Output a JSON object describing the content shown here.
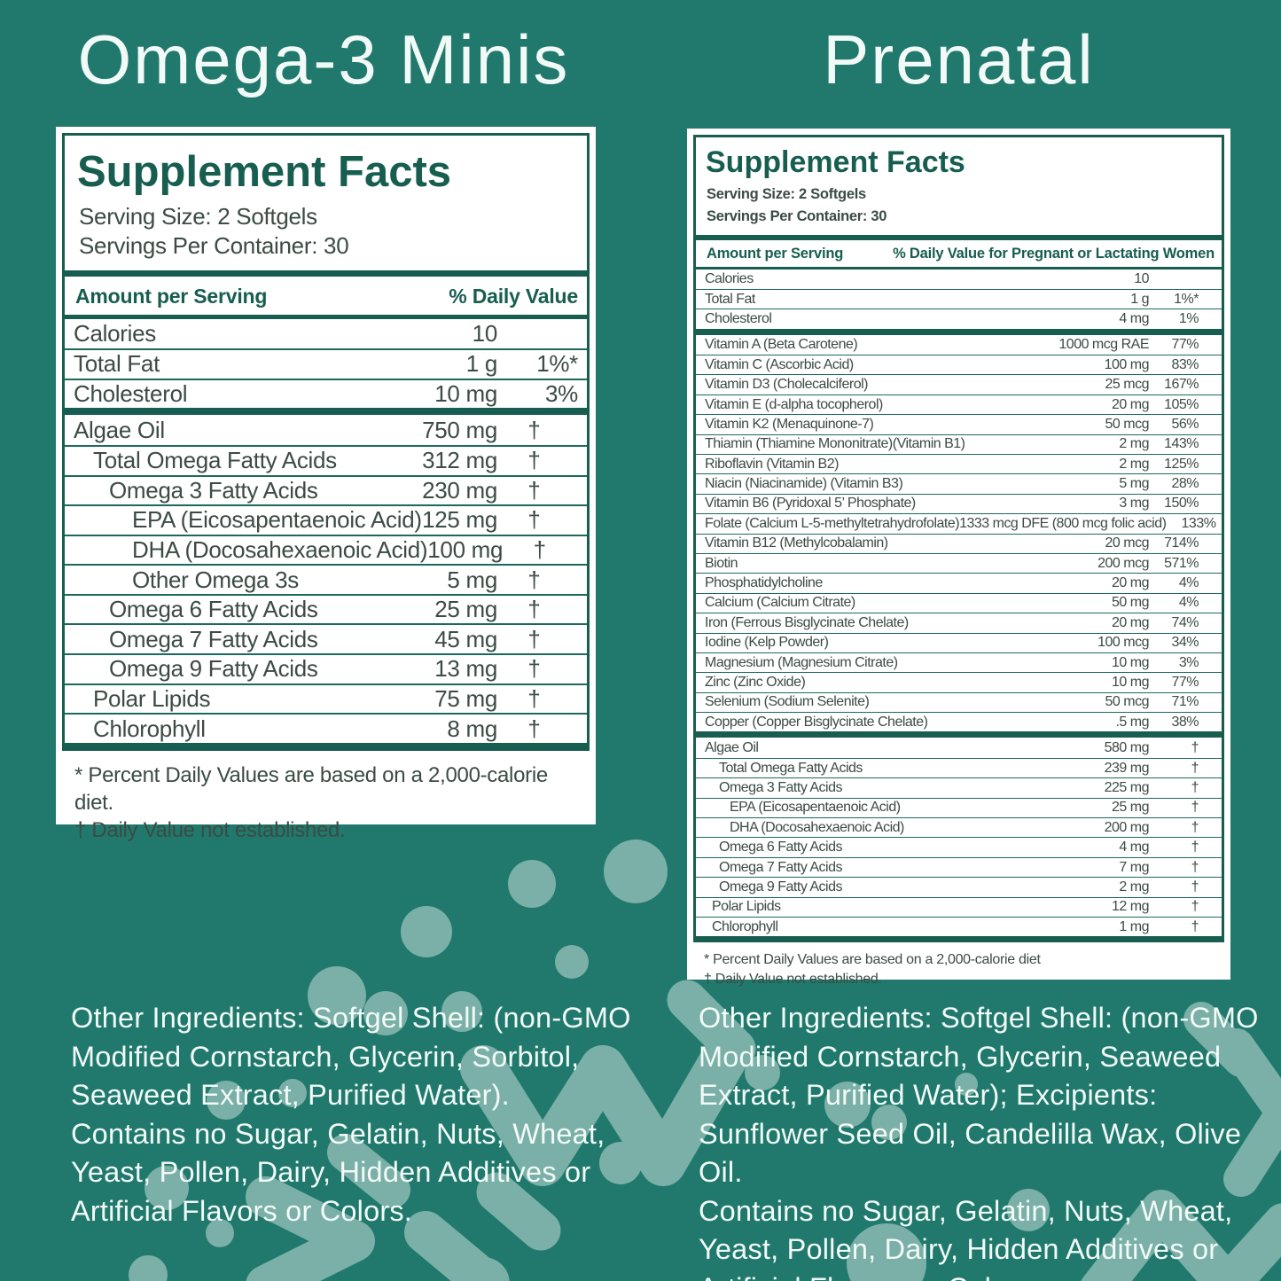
{
  "page": {
    "bg_color": "#20796C",
    "shape_color": "#7AB0A7",
    "accent_dark": "#175E50",
    "line_color": "#1C6A5C",
    "text_color": "#3C4B44",
    "panel_bg": "#FFFFFF",
    "light_text": "#F2FAF7"
  },
  "left": {
    "title": "Omega-3 Minis",
    "facts": {
      "heading": "Supplement Facts",
      "serving_size": "Serving Size: 2 Softgels",
      "servings_per_container": "Servings Per Container: 30",
      "col_amount": "Amount per Serving",
      "col_dv": "% Daily Value",
      "rows": [
        {
          "name": "Calories",
          "amount": "10",
          "dv": "",
          "indent": 0
        },
        {
          "name": "Total Fat",
          "amount": "1 g",
          "dv": "1%*",
          "indent": 0
        },
        {
          "name": "Cholesterol",
          "amount": "10 mg",
          "dv": "3%",
          "indent": 0
        },
        {
          "name": "Algae Oil",
          "amount": "750 mg",
          "dv": "†",
          "indent": 0,
          "thick_before": true
        },
        {
          "name": "Total Omega Fatty Acids",
          "amount": "312 mg",
          "dv": "†",
          "indent": 1
        },
        {
          "name": "Omega 3 Fatty Acids",
          "amount": "230 mg",
          "dv": "†",
          "indent": 2
        },
        {
          "name": "EPA (Eicosapentaenoic Acid)",
          "amount": "125 mg",
          "dv": "†",
          "indent": 3
        },
        {
          "name": "DHA (Docosahexaenoic Acid)",
          "amount": "100 mg",
          "dv": "†",
          "indent": 3
        },
        {
          "name": "Other Omega 3s",
          "amount": "5 mg",
          "dv": "†",
          "indent": 3
        },
        {
          "name": "Omega 6 Fatty Acids",
          "amount": "25 mg",
          "dv": "†",
          "indent": 2
        },
        {
          "name": "Omega 7 Fatty Acids",
          "amount": "45 mg",
          "dv": "†",
          "indent": 2
        },
        {
          "name": "Omega 9 Fatty Acids",
          "amount": "13 mg",
          "dv": "†",
          "indent": 2
        },
        {
          "name": "Polar Lipids",
          "amount": "75 mg",
          "dv": "†",
          "indent": 1
        },
        {
          "name": "Chlorophyll",
          "amount": "8 mg",
          "dv": "†",
          "indent": 1
        }
      ],
      "footnotes": {
        "percent": "* Percent Daily Values are based on a 2,000-calorie diet.",
        "dagger": "† Daily Value not established."
      }
    },
    "other_ingredients": "Other Ingredients: Softgel Shell: (non-GMO Modified Cornstarch, Glycerin, Sorbitol, Seaweed Extract, Purified Water).",
    "contains": "Contains no Sugar, Gelatin, Nuts, Wheat, Yeast, Pollen, Dairy, Hidden Additives or Artificial Flavors or Colors."
  },
  "right": {
    "title": "Prenatal",
    "facts": {
      "heading": "Supplement Facts",
      "serving_size": "Serving Size: 2 Softgels",
      "servings_per_container": "Servings Per Container: 30",
      "col_amount": "Amount per Serving",
      "col_dv": "% Daily Value for Pregnant or Lactating Women",
      "rows": [
        {
          "name": "Calories",
          "amount": "10",
          "dv": "",
          "indent": 0
        },
        {
          "name": "Total Fat",
          "amount": "1 g",
          "dv": "1%*",
          "indent": 0
        },
        {
          "name": "Cholesterol",
          "amount": "4 mg",
          "dv": "1%",
          "indent": 0
        },
        {
          "name": "Vitamin A (Beta Carotene)",
          "amount": "1000 mcg RAE",
          "dv": "77%",
          "indent": 0,
          "thick_before": true
        },
        {
          "name": "Vitamin C (Ascorbic Acid)",
          "amount": "100 mg",
          "dv": "83%",
          "indent": 0
        },
        {
          "name": "Vitamin D3 (Cholecalciferol)",
          "amount": "25 mcg",
          "dv": "167%",
          "indent": 0
        },
        {
          "name": "Vitamin E (d-alpha tocopherol)",
          "amount": "20 mg",
          "dv": "105%",
          "indent": 0
        },
        {
          "name": "Vitamin K2 (Menaquinone-7)",
          "amount": "50 mcg",
          "dv": "56%",
          "indent": 0
        },
        {
          "name": "Thiamin (Thiamine Mononitrate)(Vitamin B1)",
          "amount": "2 mg",
          "dv": "143%",
          "indent": 0
        },
        {
          "name": "Riboflavin (Vitamin B2)",
          "amount": "2 mg",
          "dv": "125%",
          "indent": 0
        },
        {
          "name": "Niacin (Niacinamide) (Vitamin B3)",
          "amount": "5 mg",
          "dv": "28%",
          "indent": 0
        },
        {
          "name": "Vitamin B6 (Pyridoxal 5’ Phosphate)",
          "amount": "3 mg",
          "dv": "150%",
          "indent": 0
        },
        {
          "name": "Folate (Calcium L-5-methyltetrahydrofolate)",
          "amount": "1333 mcg DFE (800 mcg folic acid)",
          "dv": "133%",
          "indent": 0
        },
        {
          "name": "Vitamin B12 (Methylcobalamin)",
          "amount": "20 mcg",
          "dv": "714%",
          "indent": 0
        },
        {
          "name": "Biotin",
          "amount": "200 mcg",
          "dv": "571%",
          "indent": 0
        },
        {
          "name": "Phosphatidylcholine",
          "amount": "20 mg",
          "dv": "4%",
          "indent": 0
        },
        {
          "name": "Calcium (Calcium Citrate)",
          "amount": "50 mg",
          "dv": "4%",
          "indent": 0
        },
        {
          "name": "Iron (Ferrous Bisglycinate Chelate)",
          "amount": "20 mg",
          "dv": "74%",
          "indent": 0
        },
        {
          "name": "Iodine (Kelp Powder)",
          "amount": "100 mcg",
          "dv": "34%",
          "indent": 0
        },
        {
          "name": "Magnesium (Magnesium Citrate)",
          "amount": "10 mg",
          "dv": "3%",
          "indent": 0
        },
        {
          "name": "Zinc (Zinc Oxide)",
          "amount": "10 mg",
          "dv": "77%",
          "indent": 0
        },
        {
          "name": "Selenium (Sodium Selenite)",
          "amount": "50 mcg",
          "dv": "71%",
          "indent": 0
        },
        {
          "name": "Copper (Copper Bisglycinate Chelate)",
          "amount": ".5 mg",
          "dv": "38%",
          "indent": 0
        },
        {
          "name": "Algae Oil",
          "amount": "580 mg",
          "dv": "†",
          "indent": 0,
          "thick_before": true
        },
        {
          "name": "Total Omega Fatty Acids",
          "amount": "239 mg",
          "dv": "†",
          "indent": 2
        },
        {
          "name": "Omega 3 Fatty Acids",
          "amount": "225 mg",
          "dv": "†",
          "indent": 2
        },
        {
          "name": "EPA (Eicosapentaenoic Acid)",
          "amount": "25 mg",
          "dv": "†",
          "indent": 3
        },
        {
          "name": "DHA (Docosahexaenoic Acid)",
          "amount": "200 mg",
          "dv": "†",
          "indent": 3
        },
        {
          "name": "Omega 6 Fatty Acids",
          "amount": "4 mg",
          "dv": "†",
          "indent": 2
        },
        {
          "name": "Omega 7 Fatty Acids",
          "amount": "7 mg",
          "dv": "†",
          "indent": 2
        },
        {
          "name": "Omega 9 Fatty Acids",
          "amount": "2 mg",
          "dv": "†",
          "indent": 2
        },
        {
          "name": "Polar Lipids",
          "amount": "12 mg",
          "dv": "†",
          "indent": 1
        },
        {
          "name": "Chlorophyll",
          "amount": "1 mg",
          "dv": "†",
          "indent": 1
        }
      ],
      "footnotes": {
        "percent": "* Percent Daily Values are based on a 2,000-calorie diet",
        "dagger": "† Daily Value not established."
      }
    },
    "other_ingredients": "Other Ingredients: Softgel Shell: (non-GMO Modified Cornstarch, Glycerin, Seaweed Extract, Purified Water); Excipients: Sunflower Seed Oil, Candelilla Wax, Olive Oil.",
    "contains": "Contains no Sugar, Gelatin, Nuts, Wheat, Yeast, Pollen, Dairy, Hidden Additives or Artificial Flavors or Colors."
  }
}
